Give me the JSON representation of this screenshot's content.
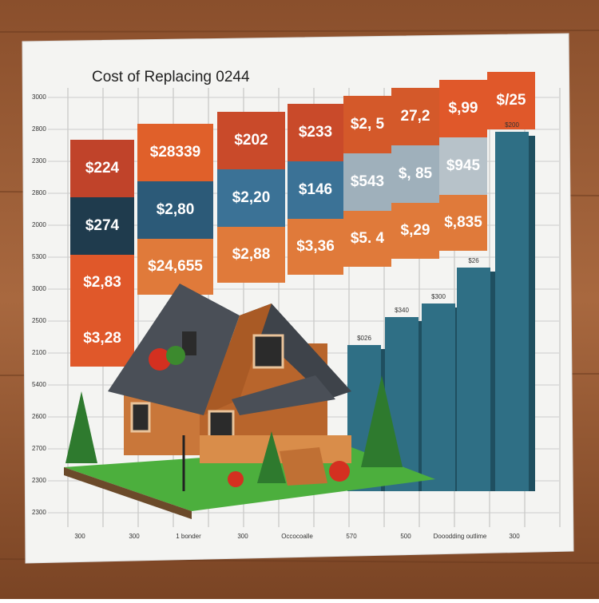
{
  "title": "Cost of Replacing 0244",
  "columns": [
    {
      "cells": [
        "$224",
        "$274",
        "$2,83",
        "$3,28"
      ]
    },
    {
      "cells": [
        "$28339",
        "$2,80",
        "$24,655"
      ]
    },
    {
      "cells": [
        "$202",
        "$2,20",
        "$2,88"
      ]
    },
    {
      "cells": [
        "$233",
        "$146",
        "$3,36"
      ]
    },
    {
      "cells": [
        "$2, 5",
        "$543",
        "$5. 4"
      ]
    },
    {
      "cells": [
        "27,2",
        "$, 85",
        "$,29"
      ]
    },
    {
      "cells": [
        "$,99",
        "$945",
        "$,835"
      ]
    },
    {
      "cells": [
        "$/25"
      ]
    }
  ],
  "bar_labels": [
    "$026",
    "$340",
    "$300",
    "$26",
    "$200"
  ],
  "y_axis_labels": [
    "3000",
    "2800",
    "2300",
    "2800",
    "2000",
    "5300",
    "3000",
    "2500",
    "2100",
    "5400",
    "2600",
    "2700",
    "2300",
    "2300"
  ],
  "x_axis_labels": [
    "300",
    "300",
    "1 bonder",
    "300",
    "Occocoalle",
    "570",
    "500",
    "Dooodding outlime",
    "300"
  ]
}
